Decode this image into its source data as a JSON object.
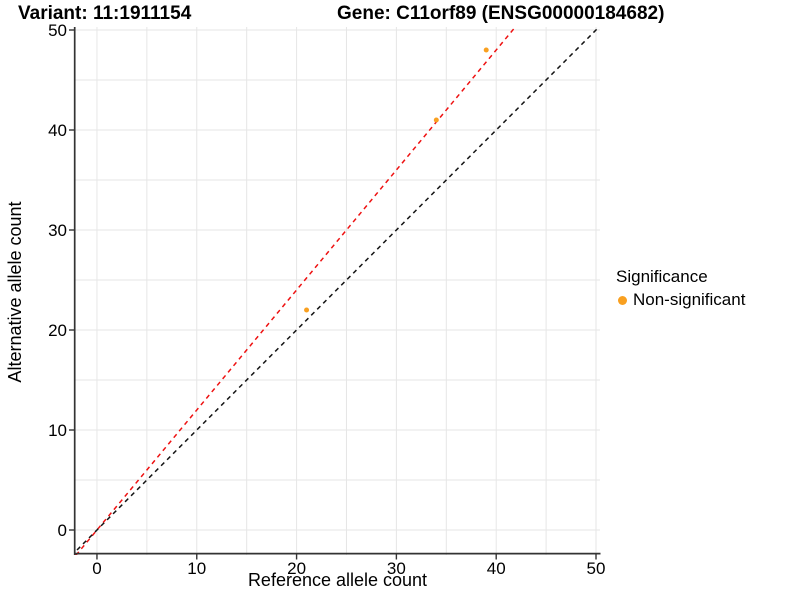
{
  "titles": {
    "variant": "Variant: 11:1911154",
    "gene": "Gene: C11orf89 (ENSG00000184682)"
  },
  "legend": {
    "title": "Significance",
    "items": [
      {
        "label": "Non-significant",
        "color": "#F9A020"
      }
    ]
  },
  "chart_data": {
    "type": "scatter",
    "xlabel": "Reference allele count",
    "ylabel": "Alternative allele count",
    "xticks": [
      0,
      10,
      20,
      30,
      40,
      50
    ],
    "yticks": [
      0,
      10,
      20,
      30,
      40,
      50
    ],
    "xlim": [
      -2.2,
      50.4
    ],
    "ylim": [
      -2.5,
      50.3
    ],
    "grid": true,
    "grid_step": 5,
    "legend_position": "right",
    "series": [
      {
        "name": "Non-significant",
        "color": "#F9A020",
        "points": [
          {
            "x": 21,
            "y": 22
          },
          {
            "x": 34,
            "y": 41
          },
          {
            "x": 39,
            "y": 48
          }
        ]
      }
    ],
    "lines": [
      {
        "name": "fit-line",
        "color": "#EE1111",
        "style": "dashed",
        "slope": 1.2,
        "intercept": 0
      },
      {
        "name": "identity-line",
        "color": "#141414",
        "style": "dashed",
        "slope": 1,
        "intercept": 0
      }
    ]
  }
}
